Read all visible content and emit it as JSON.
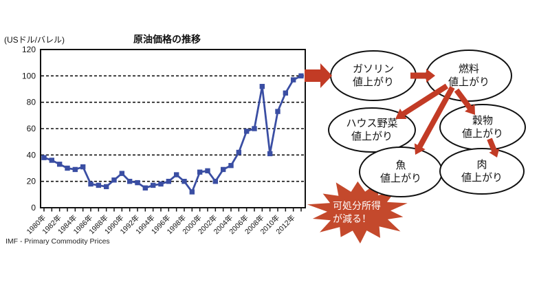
{
  "chart_data": {
    "type": "line",
    "title": "原油価格の推移",
    "ylabel": "(USドル/バレル)",
    "source": "IMF - Primary Commodity Prices",
    "x_label_suffix": "年",
    "years": [
      1980,
      1981,
      1982,
      1983,
      1984,
      1985,
      1986,
      1987,
      1988,
      1989,
      1990,
      1991,
      1992,
      1993,
      1994,
      1995,
      1996,
      1997,
      1998,
      1999,
      2000,
      2001,
      2002,
      2003,
      2004,
      2005,
      2006,
      2007,
      2008,
      2009,
      2010,
      2011,
      2012,
      2013
    ],
    "values": [
      38,
      36,
      33,
      30,
      29,
      31,
      18,
      17,
      16,
      21,
      26,
      20,
      19,
      15,
      17,
      18,
      20,
      25,
      20,
      12,
      27,
      28,
      20,
      29,
      32,
      42,
      58,
      60,
      92,
      41,
      73,
      87,
      97,
      100
    ],
    "ylim": [
      0,
      120
    ],
    "yticks": [
      0,
      20,
      40,
      60,
      80,
      100,
      120
    ],
    "grid": "horizontal-dashed",
    "legend": "none",
    "line_color": "#3a4ea3",
    "marker": "square"
  },
  "diagram": {
    "arrow_color": "#c23b25",
    "ellipse_nodes": [
      {
        "id": "gasoline",
        "lines": [
          "ガソリン",
          "値上がり"
        ]
      },
      {
        "id": "fuel",
        "lines": [
          "燃料",
          "値上がり"
        ]
      },
      {
        "id": "greenhouse-vegetables",
        "lines": [
          "ハウス野菜",
          "値上がり"
        ]
      },
      {
        "id": "grain",
        "lines": [
          "穀物",
          "値上がり"
        ]
      },
      {
        "id": "fish",
        "lines": [
          "魚",
          "値上がり"
        ]
      },
      {
        "id": "meat",
        "lines": [
          "肉",
          "値上がり"
        ]
      }
    ],
    "edges": [
      {
        "from": "oil-price-chart",
        "to": "gasoline"
      },
      {
        "from": "gasoline",
        "to": "fuel"
      },
      {
        "from": "fuel",
        "to": "greenhouse-vegetables"
      },
      {
        "from": "fuel",
        "to": "fish"
      },
      {
        "from": "fuel",
        "to": "grain"
      },
      {
        "from": "grain",
        "to": "meat"
      }
    ],
    "starburst": {
      "lines": [
        "可処分所得",
        "が減る！"
      ],
      "color": "#c4492c",
      "text_color": "#ffffff"
    }
  }
}
